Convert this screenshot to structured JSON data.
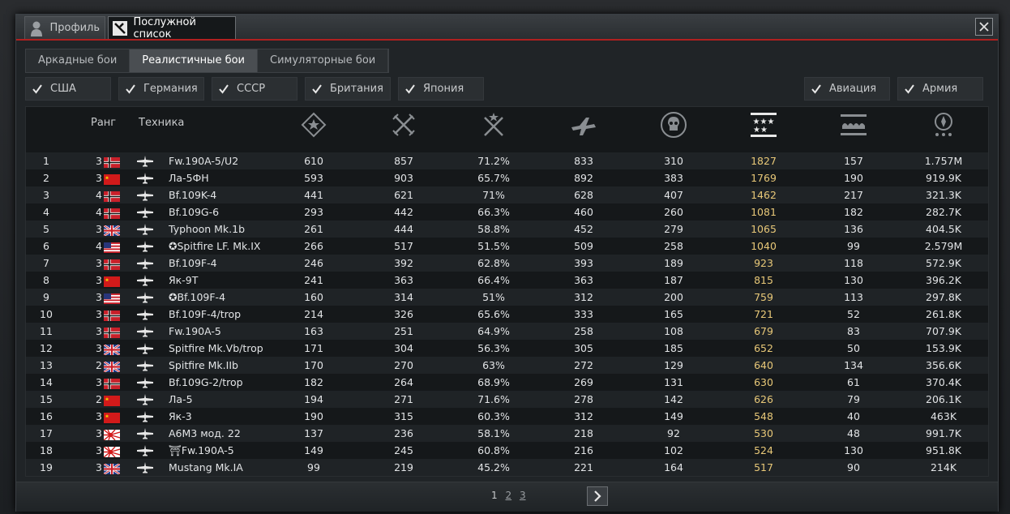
{
  "window_tabs": [
    {
      "label": "Профиль",
      "icon": "profile-bust-icon"
    },
    {
      "label": "Послужной список",
      "icon": "service-record-icon"
    }
  ],
  "game_modes": [
    "Аркадные бои",
    "Реалистичные бои",
    "Симуляторные бои"
  ],
  "active_mode": "Реалистичные бои",
  "nation_filters": [
    "США",
    "Германия",
    "СССР",
    "Британия",
    "Япония"
  ],
  "type_filters": [
    "Авиация",
    "Армия"
  ],
  "columns": {
    "rank": "Ранг",
    "vehicle": "Техника",
    "icons": [
      "kills-icon",
      "battles-icon",
      "wins-icon",
      "flights-icon",
      "deaths-icon",
      "score-icon",
      "activity-icon",
      "money-icon"
    ]
  },
  "colors": {
    "accent_red": "#b02020",
    "score_gold": "#e8c878"
  },
  "rows": [
    {
      "n": "1",
      "rank": "3",
      "nation": "germany",
      "name": "Fw.190A-5/U2",
      "kills": "610",
      "battles": "857",
      "wins": "71.2%",
      "flights": "833",
      "deaths": "310",
      "score": "1827",
      "activity": "157",
      "money": "1.757M"
    },
    {
      "n": "2",
      "rank": "3",
      "nation": "ussr",
      "name": "Ла-5ФН",
      "kills": "593",
      "battles": "903",
      "wins": "65.7%",
      "flights": "892",
      "deaths": "383",
      "score": "1769",
      "activity": "190",
      "money": "919.9K"
    },
    {
      "n": "3",
      "rank": "4",
      "nation": "germany",
      "name": "Bf.109K-4",
      "kills": "441",
      "battles": "621",
      "wins": "71%",
      "flights": "628",
      "deaths": "407",
      "score": "1462",
      "activity": "217",
      "money": "321.3K"
    },
    {
      "n": "4",
      "rank": "4",
      "nation": "germany",
      "name": "Bf.109G-6",
      "kills": "293",
      "battles": "442",
      "wins": "66.3%",
      "flights": "460",
      "deaths": "260",
      "score": "1081",
      "activity": "182",
      "money": "282.7K"
    },
    {
      "n": "5",
      "rank": "3",
      "nation": "uk",
      "name": "Typhoon Mk.1b",
      "kills": "261",
      "battles": "444",
      "wins": "58.8%",
      "flights": "452",
      "deaths": "279",
      "score": "1065",
      "activity": "136",
      "money": "404.5K"
    },
    {
      "n": "6",
      "rank": "4",
      "nation": "usa",
      "name": "✪Spitfire LF. Mk.IX",
      "kills": "266",
      "battles": "517",
      "wins": "51.5%",
      "flights": "509",
      "deaths": "258",
      "score": "1040",
      "activity": "99",
      "money": "2.579M"
    },
    {
      "n": "7",
      "rank": "3",
      "nation": "germany",
      "name": "Bf.109F-4",
      "kills": "246",
      "battles": "392",
      "wins": "62.8%",
      "flights": "393",
      "deaths": "189",
      "score": "923",
      "activity": "118",
      "money": "572.9K"
    },
    {
      "n": "8",
      "rank": "3",
      "nation": "ussr",
      "name": "Як-9Т",
      "kills": "241",
      "battles": "363",
      "wins": "66.4%",
      "flights": "363",
      "deaths": "187",
      "score": "815",
      "activity": "130",
      "money": "396.2K"
    },
    {
      "n": "9",
      "rank": "3",
      "nation": "usa",
      "name": "✪Bf.109F-4",
      "kills": "160",
      "battles": "314",
      "wins": "51%",
      "flights": "312",
      "deaths": "200",
      "score": "759",
      "activity": "113",
      "money": "297.8K"
    },
    {
      "n": "10",
      "rank": "3",
      "nation": "germany",
      "name": "Bf.109F-4/trop",
      "kills": "214",
      "battles": "326",
      "wins": "65.6%",
      "flights": "333",
      "deaths": "165",
      "score": "721",
      "activity": "52",
      "money": "261.8K"
    },
    {
      "n": "11",
      "rank": "3",
      "nation": "germany",
      "name": "Fw.190A-5",
      "kills": "163",
      "battles": "251",
      "wins": "64.9%",
      "flights": "258",
      "deaths": "108",
      "score": "679",
      "activity": "83",
      "money": "707.9K"
    },
    {
      "n": "12",
      "rank": "3",
      "nation": "uk",
      "name": "Spitfire Mk.Vb/trop",
      "kills": "171",
      "battles": "304",
      "wins": "56.3%",
      "flights": "305",
      "deaths": "185",
      "score": "652",
      "activity": "50",
      "money": "153.9K"
    },
    {
      "n": "13",
      "rank": "2",
      "nation": "uk",
      "name": "Spitfire Mk.IIb",
      "kills": "170",
      "battles": "270",
      "wins": "63%",
      "flights": "272",
      "deaths": "129",
      "score": "640",
      "activity": "134",
      "money": "356.6K"
    },
    {
      "n": "14",
      "rank": "3",
      "nation": "germany",
      "name": "Bf.109G-2/trop",
      "kills": "182",
      "battles": "264",
      "wins": "68.9%",
      "flights": "269",
      "deaths": "131",
      "score": "630",
      "activity": "61",
      "money": "370.4K"
    },
    {
      "n": "15",
      "rank": "2",
      "nation": "ussr",
      "name": "Ла-5",
      "kills": "194",
      "battles": "271",
      "wins": "71.6%",
      "flights": "278",
      "deaths": "142",
      "score": "626",
      "activity": "79",
      "money": "206.1K"
    },
    {
      "n": "16",
      "rank": "3",
      "nation": "ussr",
      "name": "Як-3",
      "kills": "190",
      "battles": "315",
      "wins": "60.3%",
      "flights": "312",
      "deaths": "149",
      "score": "548",
      "activity": "40",
      "money": "463K"
    },
    {
      "n": "17",
      "rank": "3",
      "nation": "japan",
      "name": "A6M3 мод. 22",
      "kills": "137",
      "battles": "236",
      "wins": "58.1%",
      "flights": "218",
      "deaths": "92",
      "score": "530",
      "activity": "48",
      "money": "991.7K"
    },
    {
      "n": "18",
      "rank": "3",
      "nation": "japan",
      "name": "⛩Fw.190A-5",
      "kills": "149",
      "battles": "245",
      "wins": "60.8%",
      "flights": "216",
      "deaths": "102",
      "score": "524",
      "activity": "130",
      "money": "951.8K"
    },
    {
      "n": "19",
      "rank": "3",
      "nation": "uk",
      "name": "Mustang Mk.IA",
      "kills": "99",
      "battles": "219",
      "wins": "45.2%",
      "flights": "221",
      "deaths": "164",
      "score": "517",
      "activity": "90",
      "money": "214K"
    }
  ],
  "pagination": {
    "current": "1",
    "pages": [
      "2",
      "3"
    ],
    "next_icon": "chevron-right-icon"
  }
}
